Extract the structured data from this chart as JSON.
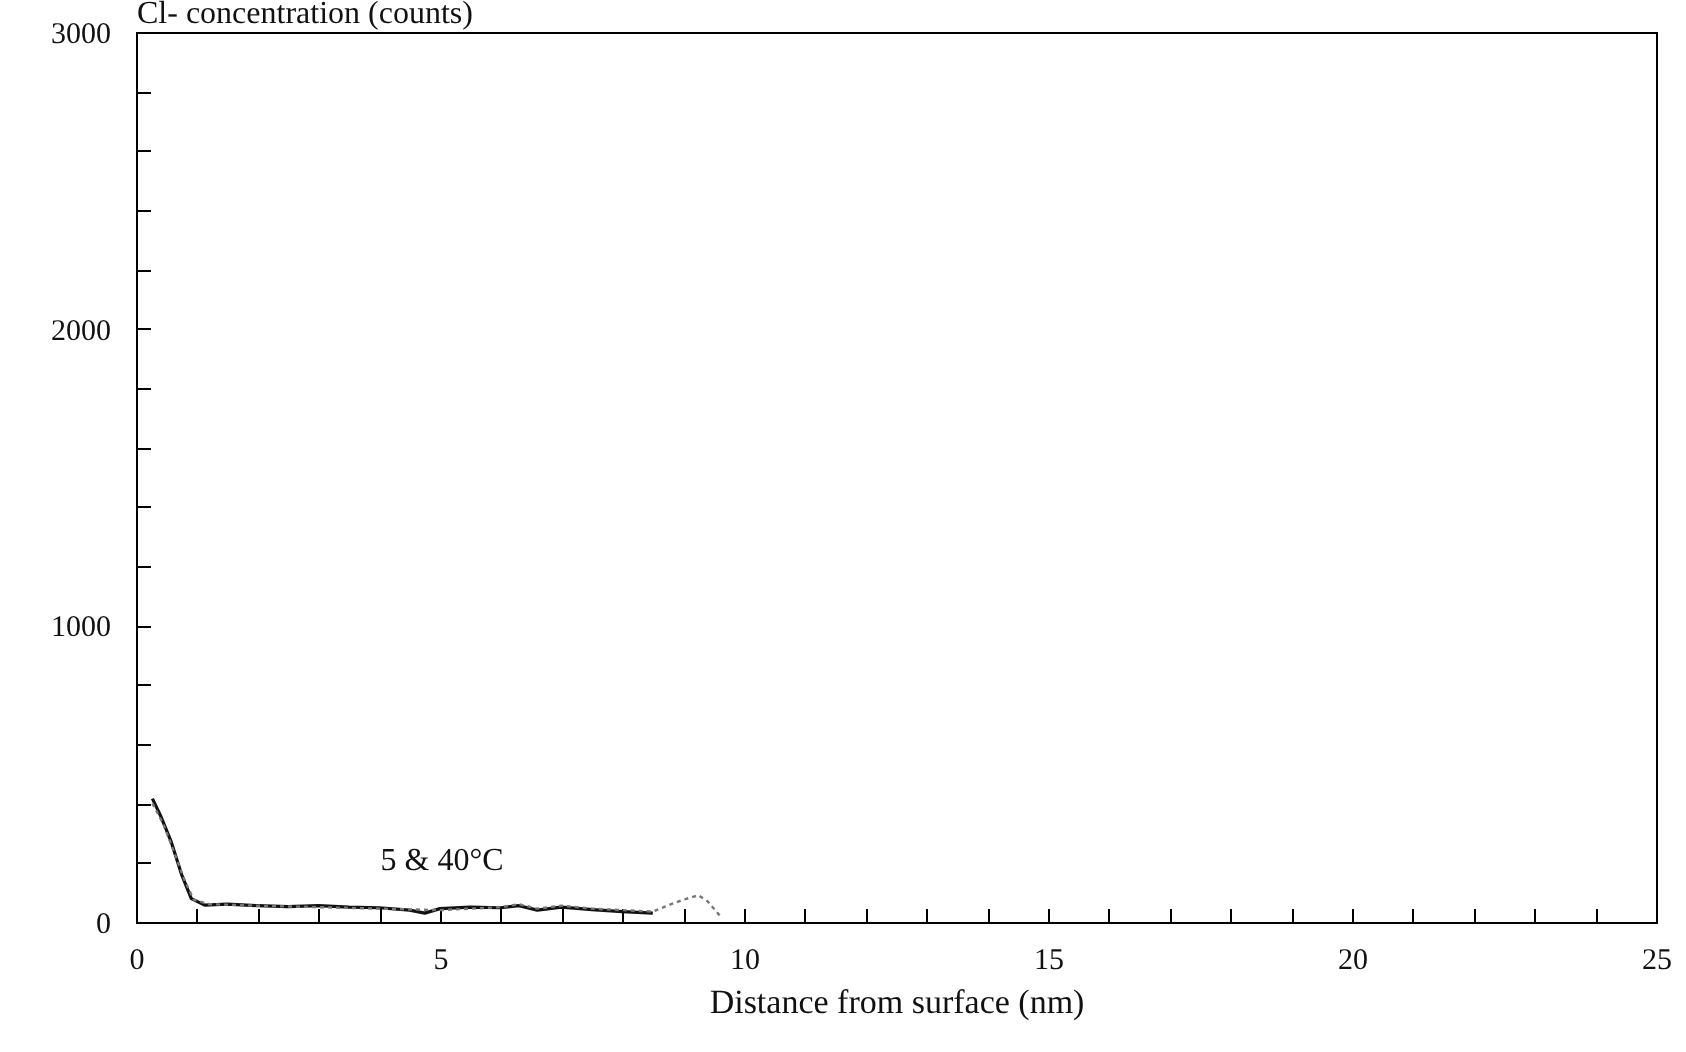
{
  "chart_data": {
    "type": "line",
    "ylabel": "Cl- concentration (counts)",
    "xlabel": "Distance from surface (nm)",
    "series": [
      {
        "color": "#111111",
        "line_style": "solid",
        "x": [
          0.27,
          0.4,
          0.58,
          0.75,
          0.91,
          1.13,
          1.5,
          2,
          2.5,
          3,
          3.5,
          4,
          4.5,
          4.75,
          5,
          5.5,
          6,
          6.3,
          6.6,
          7,
          7.5,
          8,
          8.5
        ],
        "values": [
          416,
          360,
          270,
          160,
          79,
          57,
          60,
          55,
          52,
          55,
          50,
          48,
          40,
          30,
          45,
          50,
          48,
          55,
          40,
          50,
          42,
          35,
          30
        ]
      },
      {
        "color": "#777777",
        "line_style": "dotted",
        "x": [
          0.27,
          0.45,
          0.6,
          0.8,
          0.95,
          1.2,
          2,
          3,
          4,
          5,
          6,
          6.3,
          6.6,
          7,
          7.5,
          8,
          8.5,
          8.8,
          9,
          9.25,
          9.4,
          9.6
        ],
        "values": [
          400,
          330,
          250,
          140,
          75,
          60,
          55,
          50,
          45,
          40,
          50,
          60,
          45,
          55,
          45,
          40,
          35,
          60,
          75,
          90,
          70,
          22
        ]
      }
    ],
    "xlim": [
      0,
      25
    ],
    "ylim": [
      0,
      3000
    ],
    "xticks": [
      0,
      {
        "value": 1,
        "label": null
      },
      {
        "value": 2,
        "label": null
      },
      {
        "value": 3,
        "label": null
      },
      {
        "value": 4,
        "label": null
      },
      5,
      {
        "value": 6,
        "label": null
      },
      {
        "value": 7,
        "label": null
      },
      {
        "value": 8,
        "label": null
      },
      {
        "value": 9,
        "label": null
      },
      10,
      {
        "value": 11,
        "label": null
      },
      {
        "value": 12,
        "label": null
      },
      {
        "value": 13,
        "label": null
      },
      {
        "value": 14,
        "label": null
      },
      15,
      {
        "value": 16,
        "label": null
      },
      {
        "value": 17,
        "label": null
      },
      {
        "value": 18,
        "label": null
      },
      {
        "value": 19,
        "label": null
      },
      20,
      {
        "value": 21,
        "label": null
      },
      {
        "value": 22,
        "label": null
      },
      {
        "value": 23,
        "label": null
      },
      {
        "value": 24,
        "label": null
      },
      25
    ],
    "yticks": [
      0,
      {
        "value": 200,
        "label": null
      },
      {
        "value": 400,
        "label": null
      },
      {
        "value": 600,
        "label": null
      },
      {
        "value": 800,
        "label": null
      },
      1000,
      {
        "value": 1200,
        "label": null
      },
      {
        "value": 1400,
        "label": null
      },
      {
        "value": 1600,
        "label": null
      },
      {
        "value": 1800,
        "label": null
      },
      2000,
      {
        "value": 2200,
        "label": null
      },
      {
        "value": 2400,
        "label": null
      },
      {
        "value": 2600,
        "label": null
      },
      {
        "value": 2800,
        "label": null
      },
      3000
    ],
    "annotations": [
      "5 & 40°C"
    ],
    "grid": false
  }
}
